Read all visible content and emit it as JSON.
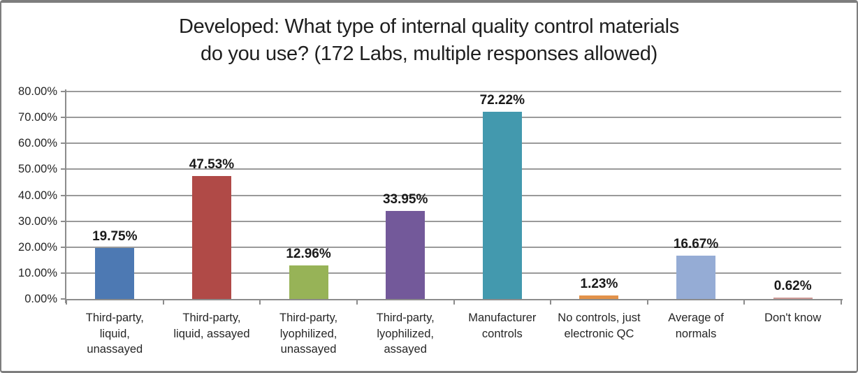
{
  "header": {
    "title_line1": "Developed: What type of internal quality control materials",
    "title_line2": "do you use? (172 Labs, multiple responses allowed)"
  },
  "chart_data": {
    "type": "bar",
    "title": "Developed: What type of internal quality control materials do you use? (172 Labs, multiple responses allowed)",
    "categories": [
      "Third-party, liquid, unassayed",
      "Third-party, liquid, assayed",
      "Third-party, lyophilized, unassayed",
      "Third-party, lyophilized, assayed",
      "Manufacturer controls",
      "No controls, just electronic QC",
      "Average of normals",
      "Don't know"
    ],
    "values": [
      19.75,
      47.53,
      12.96,
      33.95,
      72.22,
      1.23,
      16.67,
      0.62
    ],
    "value_labels": [
      "19.75%",
      "47.53%",
      "12.96%",
      "33.95%",
      "72.22%",
      "1.23%",
      "16.67%",
      "0.62%"
    ],
    "bar_colors": [
      "#4d79b3",
      "#b04a47",
      "#97b357",
      "#73599a",
      "#4399ae",
      "#e2924a",
      "#95acd5",
      "#cd9996"
    ],
    "xlabel": "",
    "ylabel": "",
    "ylim": [
      0,
      80
    ],
    "y_ticks": [
      0,
      10,
      20,
      30,
      40,
      50,
      60,
      70,
      80
    ],
    "y_tick_labels": [
      "0.00%",
      "10.00%",
      "20.00%",
      "30.00%",
      "40.00%",
      "50.00%",
      "60.00%",
      "70.00%",
      "80.00%"
    ],
    "grid": true,
    "legend": "none"
  }
}
